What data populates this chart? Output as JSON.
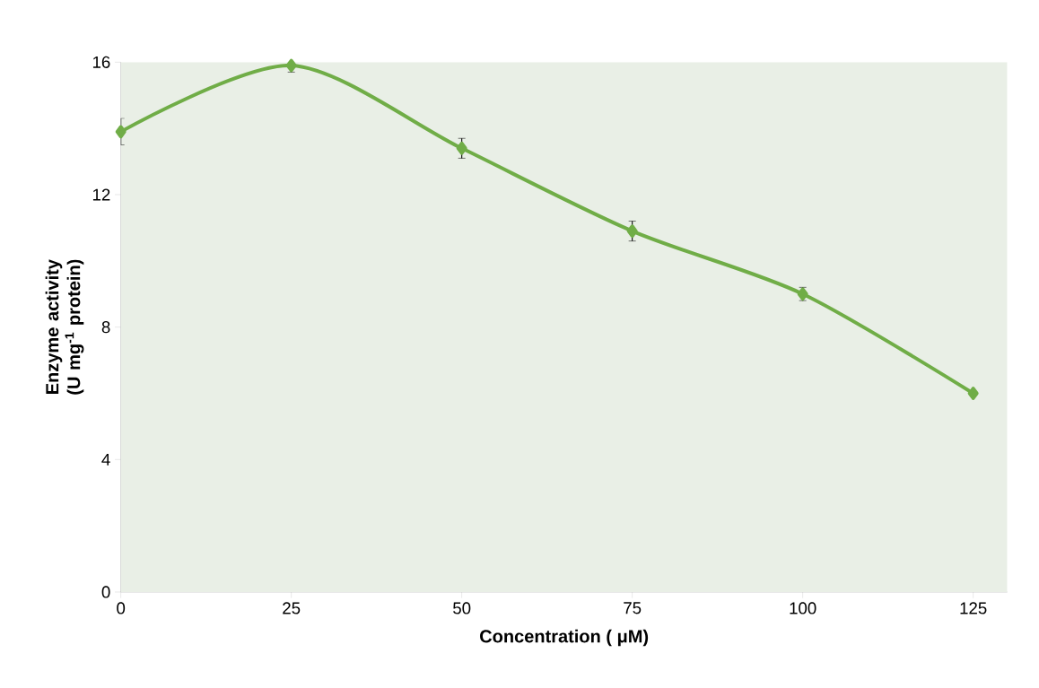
{
  "chart_data": {
    "type": "line",
    "xlabel": "Concentration ( μM)",
    "ylabel": "Enzyme activity (U mg$^{-1}$ protein)",
    "x": [
      0,
      25,
      50,
      75,
      100,
      125
    ],
    "series": [
      {
        "color": "#70ad47",
        "values": [
          13.9,
          15.9,
          13.4,
          10.9,
          9.0,
          6.0
        ],
        "errors": [
          0.4,
          0.2,
          0.3,
          0.3,
          0.2,
          null
        ]
      }
    ],
    "xlim": [
      0,
      130
    ],
    "ylim": [
      0,
      16
    ],
    "xticks": [
      0,
      25,
      50,
      75,
      100,
      125
    ],
    "yticks": [
      0,
      4,
      8,
      12,
      16
    ],
    "grid": false,
    "marker": "diamond",
    "line_style": "solid"
  }
}
